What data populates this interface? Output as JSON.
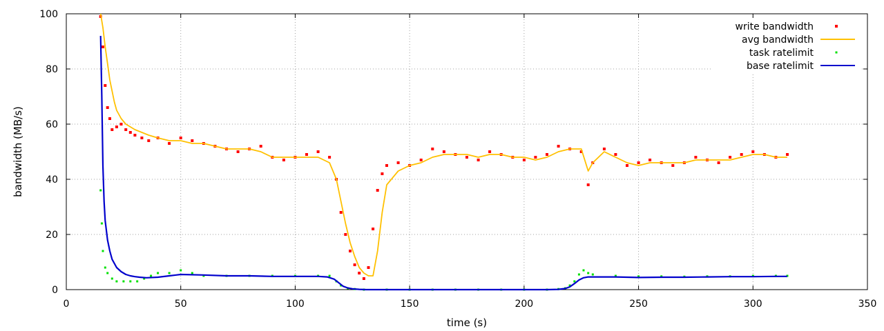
{
  "chart_data": {
    "type": "scatter",
    "xlabel": "time (s)",
    "ylabel": "bandwidth (MB/s)",
    "xlim": [
      0,
      350
    ],
    "ylim": [
      0,
      100
    ],
    "xticks": [
      "0",
      "50",
      "100",
      "150",
      "200",
      "250",
      "300",
      "350"
    ],
    "yticks": [
      "0",
      "20",
      "40",
      "60",
      "80",
      "100"
    ],
    "grid": true,
    "legend": "top-right",
    "series": [
      {
        "name": "write bandwidth",
        "kind": "points",
        "color": "#ff0000",
        "x": [
          15,
          16,
          17,
          18,
          19,
          20,
          22,
          24,
          26,
          28,
          30,
          33,
          36,
          40,
          45,
          50,
          55,
          60,
          65,
          70,
          75,
          80,
          85,
          90,
          95,
          100,
          105,
          110,
          115,
          118,
          120,
          122,
          124,
          126,
          128,
          130,
          132,
          134,
          136,
          138,
          140,
          145,
          150,
          155,
          160,
          165,
          170,
          175,
          180,
          185,
          190,
          195,
          200,
          205,
          210,
          215,
          220,
          225,
          228,
          230,
          235,
          240,
          245,
          250,
          255,
          260,
          265,
          270,
          275,
          280,
          285,
          290,
          295,
          300,
          305,
          310,
          315
        ],
        "y": [
          99,
          88,
          74,
          66,
          62,
          58,
          59,
          60,
          58,
          57,
          56,
          55,
          54,
          55,
          53,
          55,
          54,
          53,
          52,
          51,
          50,
          51,
          52,
          48,
          47,
          48,
          49,
          50,
          48,
          40,
          28,
          20,
          14,
          9,
          6,
          4,
          8,
          22,
          36,
          42,
          45,
          46,
          45,
          47,
          51,
          50,
          49,
          48,
          47,
          50,
          49,
          48,
          47,
          48,
          49,
          52,
          51,
          50,
          38,
          46,
          51,
          49,
          45,
          46,
          47,
          46,
          45,
          46,
          48,
          47,
          46,
          48,
          49,
          50,
          49,
          48,
          49
        ]
      },
      {
        "name": "avg bandwidth",
        "kind": "line",
        "color": "#ffc000",
        "x": [
          15,
          16,
          17,
          18,
          19,
          20,
          21,
          22,
          24,
          26,
          28,
          30,
          33,
          36,
          40,
          45,
          50,
          55,
          60,
          65,
          70,
          75,
          80,
          85,
          90,
          95,
          100,
          105,
          110,
          115,
          118,
          120,
          122,
          124,
          126,
          128,
          130,
          132,
          134,
          136,
          138,
          140,
          145,
          150,
          155,
          160,
          165,
          170,
          175,
          180,
          185,
          190,
          195,
          200,
          205,
          210,
          215,
          220,
          225,
          228,
          230,
          235,
          240,
          245,
          250,
          255,
          260,
          265,
          270,
          275,
          280,
          285,
          290,
          295,
          300,
          305,
          310,
          315
        ],
        "y": [
          100,
          95,
          88,
          82,
          76,
          72,
          68,
          65,
          62,
          60,
          59,
          58,
          57,
          56,
          55,
          54,
          54,
          53,
          53,
          52,
          51,
          51,
          51,
          50,
          48,
          48,
          48,
          48,
          48,
          46,
          40,
          32,
          24,
          17,
          12,
          8,
          6,
          5,
          5,
          14,
          28,
          38,
          43,
          45,
          46,
          48,
          49,
          49,
          49,
          48,
          49,
          49,
          48,
          48,
          47,
          48,
          50,
          51,
          51,
          43,
          46,
          50,
          48,
          46,
          45,
          46,
          46,
          46,
          46,
          47,
          47,
          47,
          47,
          48,
          49,
          49,
          48,
          48
        ]
      },
      {
        "name": "task ratelimit",
        "kind": "points",
        "color": "#00e000",
        "x": [
          15,
          15.5,
          16,
          17,
          18,
          20,
          22,
          25,
          28,
          31,
          34,
          37,
          40,
          45,
          50,
          55,
          60,
          70,
          80,
          90,
          100,
          110,
          115,
          118,
          120,
          123,
          126,
          130,
          140,
          150,
          160,
          170,
          180,
          190,
          200,
          210,
          215,
          218,
          220,
          222,
          224,
          226,
          228,
          230,
          240,
          250,
          260,
          270,
          280,
          290,
          300,
          310,
          315
        ],
        "y": [
          36,
          24,
          14,
          8,
          6,
          4,
          3,
          3,
          3,
          3,
          4,
          5,
          6,
          6,
          7,
          6,
          5,
          5,
          5,
          5,
          5,
          5,
          5,
          3,
          1.5,
          0.5,
          0.2,
          0,
          0,
          0,
          0,
          0,
          0,
          0,
          0,
          0,
          0.2,
          0.5,
          1.5,
          3,
          5.5,
          7,
          6,
          5.5,
          5,
          4.8,
          4.8,
          4.7,
          4.8,
          4.8,
          5,
          5,
          5
        ]
      },
      {
        "name": "base ratelimit",
        "kind": "line",
        "color": "#0000cc",
        "x": [
          15,
          15.5,
          16,
          16.5,
          17,
          18,
          19,
          20,
          22,
          24,
          26,
          28,
          30,
          32,
          35,
          40,
          45,
          50,
          60,
          70,
          80,
          90,
          100,
          110,
          114,
          117,
          119,
          121,
          123,
          125,
          128,
          131,
          140,
          150,
          160,
          170,
          180,
          190,
          200,
          210,
          215,
          218,
          220,
          222,
          224,
          226,
          228,
          240,
          250,
          260,
          270,
          280,
          290,
          300,
          310,
          315
        ],
        "y": [
          92,
          70,
          45,
          32,
          25,
          18,
          14,
          11,
          8,
          6.5,
          5.5,
          5,
          4.7,
          4.5,
          4.3,
          4.5,
          5,
          5.5,
          5.3,
          5,
          5,
          4.8,
          4.8,
          4.8,
          4.6,
          3.8,
          2.5,
          1.2,
          0.6,
          0.3,
          0.1,
          0,
          0,
          0,
          0,
          0,
          0,
          0,
          0,
          0,
          0.1,
          0.4,
          1,
          2.2,
          3.5,
          4.3,
          4.6,
          4.6,
          4.4,
          4.5,
          4.5,
          4.6,
          4.7,
          4.7,
          4.8,
          4.8
        ]
      }
    ]
  }
}
